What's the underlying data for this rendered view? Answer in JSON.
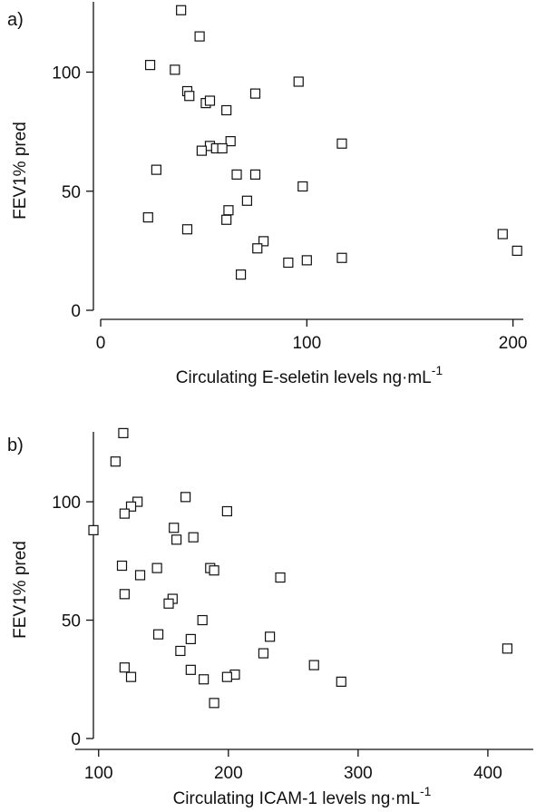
{
  "chart_data": [
    {
      "type": "scatter",
      "panel_label": "a)",
      "title": "",
      "xlabel": "Circulating E-seletin levels ng·mL",
      "xlabel_sup": "-1",
      "ylabel": "FEV1% pred",
      "xlim": [
        0,
        205
      ],
      "ylim": [
        0,
        128
      ],
      "xticks": [
        0,
        100,
        200
      ],
      "yticks": [
        0,
        50,
        100
      ],
      "grid": false,
      "marker": "open-square",
      "points": [
        {
          "x": 39,
          "y": 126
        },
        {
          "x": 48,
          "y": 115
        },
        {
          "x": 24,
          "y": 103
        },
        {
          "x": 36,
          "y": 101
        },
        {
          "x": 96,
          "y": 96
        },
        {
          "x": 42,
          "y": 92
        },
        {
          "x": 43,
          "y": 90
        },
        {
          "x": 75,
          "y": 91
        },
        {
          "x": 51,
          "y": 87
        },
        {
          "x": 53,
          "y": 88
        },
        {
          "x": 61,
          "y": 84
        },
        {
          "x": 63,
          "y": 71
        },
        {
          "x": 117,
          "y": 70
        },
        {
          "x": 53,
          "y": 69
        },
        {
          "x": 56,
          "y": 68
        },
        {
          "x": 59,
          "y": 68
        },
        {
          "x": 49,
          "y": 67
        },
        {
          "x": 27,
          "y": 59
        },
        {
          "x": 66,
          "y": 57
        },
        {
          "x": 75,
          "y": 57
        },
        {
          "x": 98,
          "y": 52
        },
        {
          "x": 71,
          "y": 46
        },
        {
          "x": 62,
          "y": 42
        },
        {
          "x": 23,
          "y": 39
        },
        {
          "x": 61,
          "y": 38
        },
        {
          "x": 42,
          "y": 34
        },
        {
          "x": 195,
          "y": 32
        },
        {
          "x": 79,
          "y": 29
        },
        {
          "x": 76,
          "y": 26
        },
        {
          "x": 202,
          "y": 25
        },
        {
          "x": 117,
          "y": 22
        },
        {
          "x": 100,
          "y": 21
        },
        {
          "x": 91,
          "y": 20
        },
        {
          "x": 68,
          "y": 15
        }
      ]
    },
    {
      "type": "scatter",
      "panel_label": "b)",
      "title": "",
      "xlabel": "Circulating ICAM-1 levels ng·mL",
      "xlabel_sup": "-1",
      "ylabel": "FEV1% pred",
      "xlim": [
        82,
        435
      ],
      "ylim": [
        0,
        128
      ],
      "xticks": [
        100,
        200,
        300,
        400
      ],
      "yticks": [
        0,
        50,
        100
      ],
      "grid": false,
      "marker": "open-square",
      "points": [
        {
          "x": 119,
          "y": 129
        },
        {
          "x": 113,
          "y": 117
        },
        {
          "x": 167,
          "y": 102
        },
        {
          "x": 130,
          "y": 100
        },
        {
          "x": 125,
          "y": 98
        },
        {
          "x": 120,
          "y": 95
        },
        {
          "x": 199,
          "y": 96
        },
        {
          "x": 158,
          "y": 89
        },
        {
          "x": 96,
          "y": 88
        },
        {
          "x": 160,
          "y": 84
        },
        {
          "x": 173,
          "y": 85
        },
        {
          "x": 118,
          "y": 73
        },
        {
          "x": 145,
          "y": 72
        },
        {
          "x": 186,
          "y": 72
        },
        {
          "x": 189,
          "y": 71
        },
        {
          "x": 132,
          "y": 69
        },
        {
          "x": 240,
          "y": 68
        },
        {
          "x": 120,
          "y": 61
        },
        {
          "x": 157,
          "y": 59
        },
        {
          "x": 154,
          "y": 57
        },
        {
          "x": 180,
          "y": 50
        },
        {
          "x": 146,
          "y": 44
        },
        {
          "x": 232,
          "y": 43
        },
        {
          "x": 171,
          "y": 42
        },
        {
          "x": 415,
          "y": 38
        },
        {
          "x": 163,
          "y": 37
        },
        {
          "x": 227,
          "y": 36
        },
        {
          "x": 266,
          "y": 31
        },
        {
          "x": 120,
          "y": 30
        },
        {
          "x": 171,
          "y": 29
        },
        {
          "x": 205,
          "y": 27
        },
        {
          "x": 125,
          "y": 26
        },
        {
          "x": 199,
          "y": 26
        },
        {
          "x": 181,
          "y": 25
        },
        {
          "x": 287,
          "y": 24
        },
        {
          "x": 189,
          "y": 15
        }
      ]
    }
  ]
}
